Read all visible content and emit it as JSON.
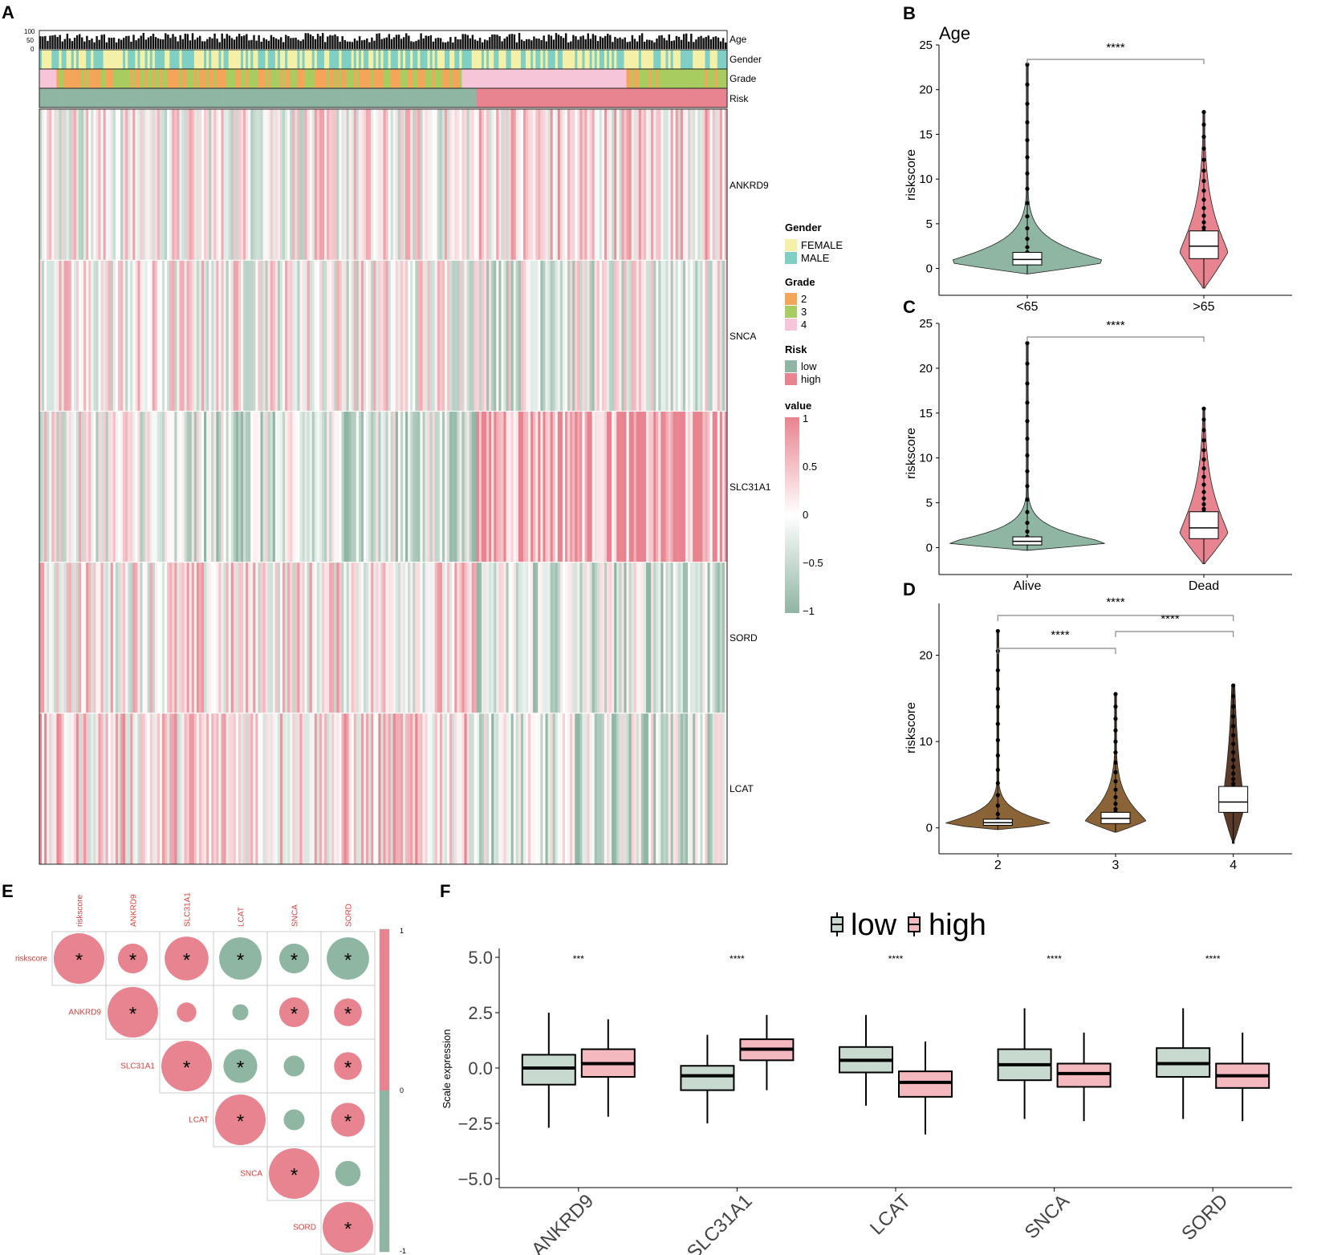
{
  "panel_labels": {
    "A": "A",
    "B": "B",
    "C": "C",
    "D": "D",
    "E": "E",
    "F": "F"
  },
  "colors": {
    "low": "#8fb5a3",
    "high": "#e8848f",
    "female": "#f5f0a8",
    "male": "#7fcfc4",
    "grade2": "#f5a55a",
    "grade3": "#a8cc60",
    "grade4": "#f6c6d8",
    "brown": "#8a6436",
    "dark_brown": "#5a3a28",
    "box_low": "#c8d9d0",
    "box_high": "#f4b8bf",
    "corr_label": "#d9413c"
  },
  "heatmap": {
    "annotation_labels": [
      "Age",
      "Gender",
      "Grade",
      "Risk"
    ],
    "age_ticks": [
      "100",
      "50",
      "0"
    ],
    "genes": [
      "ANKRD9",
      "SNCA",
      "SLC31A1",
      "SORD",
      "LCAT"
    ],
    "legend": {
      "gender_title": "Gender",
      "gender_items": [
        "FEMALE",
        "MALE"
      ],
      "grade_title": "Grade",
      "grade_items": [
        "2",
        "3",
        "4"
      ],
      "risk_title": "Risk",
      "risk_items": [
        "low",
        "high"
      ],
      "value_title": "value",
      "value_ticks": [
        "1",
        "0.5",
        "0",
        "−0.5",
        "−1"
      ]
    }
  },
  "chart_data": [
    {
      "panel": "B",
      "type": "violin",
      "title": "Age",
      "ylabel": "riskscore",
      "ylim": [
        -3,
        25
      ],
      "yticks": [
        0,
        5,
        10,
        15,
        20,
        25
      ],
      "categories": [
        "<65",
        ">65"
      ],
      "medians": [
        1.0,
        2.5
      ],
      "q1": [
        0.4,
        1.1
      ],
      "q3": [
        1.8,
        4.2
      ],
      "max": [
        22.8,
        17.5
      ],
      "min": [
        -0.6,
        -2.2
      ],
      "significance": "****"
    },
    {
      "panel": "C",
      "type": "violin",
      "title": "",
      "ylabel": "riskscore",
      "ylim": [
        -3,
        25
      ],
      "yticks": [
        0,
        5,
        10,
        15,
        20,
        25
      ],
      "categories": [
        "Alive",
        "Dead"
      ],
      "medians": [
        0.7,
        2.2
      ],
      "q1": [
        0.3,
        1.0
      ],
      "q3": [
        1.2,
        4.0
      ],
      "max": [
        22.8,
        15.5
      ],
      "min": [
        -0.3,
        -1.8
      ],
      "significance": "****"
    },
    {
      "panel": "D",
      "type": "violin",
      "title": "",
      "ylabel": "riskscore",
      "ylim": [
        -3,
        26
      ],
      "yticks": [
        0,
        10,
        20
      ],
      "categories": [
        "2",
        "3",
        "4"
      ],
      "medians": [
        0.6,
        1.1,
        3.0
      ],
      "q1": [
        0.3,
        0.5,
        1.8
      ],
      "q3": [
        1.0,
        1.8,
        4.8
      ],
      "max": [
        22.8,
        15.5,
        16.5
      ],
      "min": [
        -0.2,
        -0.5,
        -1.8
      ],
      "significance_pairs": [
        {
          "from": "2",
          "to": "4",
          "label": "****"
        },
        {
          "from": "2",
          "to": "3",
          "label": "****"
        },
        {
          "from": "3",
          "to": "4",
          "label": "****"
        }
      ]
    },
    {
      "panel": "E",
      "type": "heatmap",
      "subtype": "correlation",
      "variables": [
        "riskscore",
        "ANKRD9",
        "SLC31A1",
        "LCAT",
        "SNCA",
        "SORD"
      ],
      "colorbar_ticks": [
        "1",
        "0",
        "-1"
      ],
      "cells": [
        {
          "row": "riskscore",
          "col": "riskscore",
          "r": 1.0,
          "sig": "*"
        },
        {
          "row": "riskscore",
          "col": "ANKRD9",
          "r": 0.35,
          "sig": "*"
        },
        {
          "row": "riskscore",
          "col": "SLC31A1",
          "r": 0.75,
          "sig": "*"
        },
        {
          "row": "riskscore",
          "col": "LCAT",
          "r": -0.7,
          "sig": "*"
        },
        {
          "row": "riskscore",
          "col": "SNCA",
          "r": -0.35,
          "sig": "*"
        },
        {
          "row": "riskscore",
          "col": "SORD",
          "r": -0.7,
          "sig": "*"
        },
        {
          "row": "ANKRD9",
          "col": "ANKRD9",
          "r": 1.0,
          "sig": "*"
        },
        {
          "row": "ANKRD9",
          "col": "SLC31A1",
          "r": 0.15,
          "sig": ""
        },
        {
          "row": "ANKRD9",
          "col": "LCAT",
          "r": -0.1,
          "sig": ""
        },
        {
          "row": "ANKRD9",
          "col": "SNCA",
          "r": 0.35,
          "sig": "*"
        },
        {
          "row": "ANKRD9",
          "col": "SORD",
          "r": 0.3,
          "sig": "*"
        },
        {
          "row": "SLC31A1",
          "col": "SLC31A1",
          "r": 1.0,
          "sig": "*"
        },
        {
          "row": "SLC31A1",
          "col": "LCAT",
          "r": -0.45,
          "sig": "*"
        },
        {
          "row": "SLC31A1",
          "col": "SNCA",
          "r": -0.17,
          "sig": ""
        },
        {
          "row": "SLC31A1",
          "col": "SORD",
          "r": 0.3,
          "sig": "*"
        },
        {
          "row": "LCAT",
          "col": "LCAT",
          "r": 1.0,
          "sig": "*"
        },
        {
          "row": "LCAT",
          "col": "SNCA",
          "r": -0.17,
          "sig": ""
        },
        {
          "row": "LCAT",
          "col": "SORD",
          "r": 0.45,
          "sig": "*"
        },
        {
          "row": "SNCA",
          "col": "SNCA",
          "r": 1.0,
          "sig": "*"
        },
        {
          "row": "SNCA",
          "col": "SORD",
          "r": -0.25,
          "sig": ""
        },
        {
          "row": "SORD",
          "col": "SORD",
          "r": 1.0,
          "sig": "*"
        }
      ]
    },
    {
      "panel": "F",
      "type": "box",
      "ylabel": "Scale expression",
      "ylim": [
        -5.4,
        5.4
      ],
      "yticks": [
        "5.0",
        "2.5",
        "0.0",
        "−2.5",
        "−5.0"
      ],
      "legend": [
        "low",
        "high"
      ],
      "categories": [
        "ANKRD9",
        "SLC31A1",
        "LCAT",
        "SNCA",
        "SORD"
      ],
      "significance": [
        "***",
        "****",
        "****",
        "****",
        "****"
      ],
      "series": [
        {
          "name": "low",
          "stats": [
            {
              "min": -2.7,
              "q1": -0.75,
              "median": 0.0,
              "q3": 0.6,
              "max": 2.5
            },
            {
              "min": -2.5,
              "q1": -1.0,
              "median": -0.35,
              "q3": 0.1,
              "max": 1.5
            },
            {
              "min": -1.7,
              "q1": -0.2,
              "median": 0.35,
              "q3": 0.95,
              "max": 2.4
            },
            {
              "min": -2.3,
              "q1": -0.55,
              "median": 0.15,
              "q3": 0.85,
              "max": 2.7
            },
            {
              "min": -2.3,
              "q1": -0.4,
              "median": 0.2,
              "q3": 0.9,
              "max": 2.7
            }
          ]
        },
        {
          "name": "high",
          "stats": [
            {
              "min": -2.2,
              "q1": -0.4,
              "median": 0.2,
              "q3": 0.85,
              "max": 2.2
            },
            {
              "min": -1.0,
              "q1": 0.35,
              "median": 0.85,
              "q3": 1.3,
              "max": 2.4
            },
            {
              "min": -3.0,
              "q1": -1.3,
              "median": -0.65,
              "q3": -0.15,
              "max": 1.2
            },
            {
              "min": -2.4,
              "q1": -0.85,
              "median": -0.25,
              "q3": 0.2,
              "max": 1.6
            },
            {
              "min": -2.4,
              "q1": -0.9,
              "median": -0.35,
              "q3": 0.2,
              "max": 1.6
            }
          ]
        }
      ]
    }
  ]
}
